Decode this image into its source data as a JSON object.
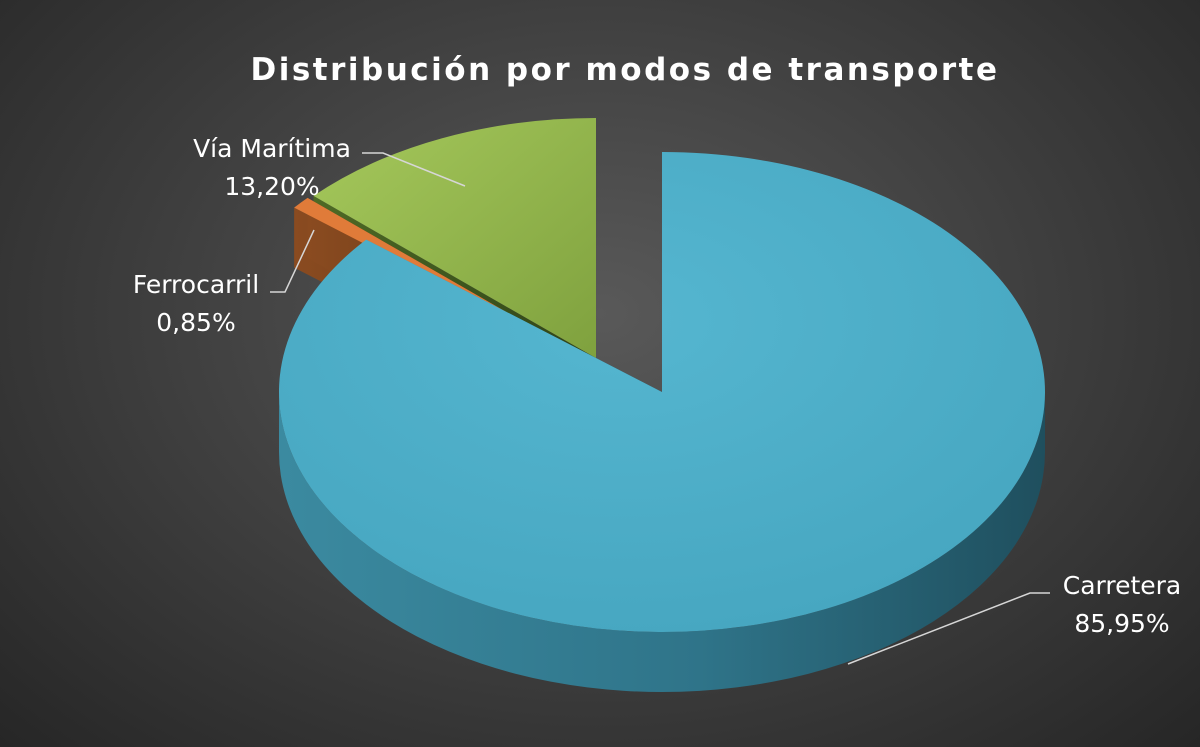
{
  "chart_data": {
    "type": "pie",
    "title": "Distribución por modos de transporte",
    "slices": [
      {
        "name": "Carretera",
        "value": 85.95,
        "label": "85,95%",
        "color": "#4aacc6"
      },
      {
        "name": "Ferrocarril",
        "value": 0.85,
        "label": "0,85%",
        "color": "#e07b39"
      },
      {
        "name": "Vía Marítima",
        "value": 13.2,
        "label": "13,20%",
        "color": "#9bbb59"
      }
    ],
    "exploded": true,
    "three_d": true,
    "legend": "none"
  }
}
